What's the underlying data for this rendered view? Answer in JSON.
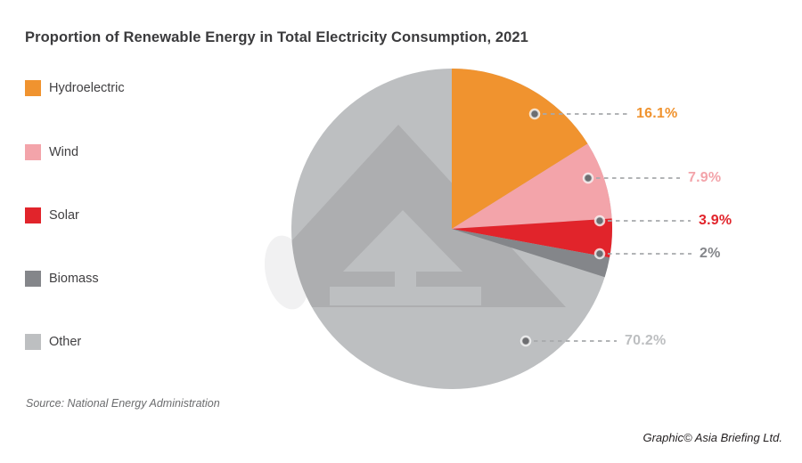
{
  "title": "Proportion of Renewable Energy in Total Electricity Consumption, 2021",
  "source": "Source: National Energy Administration",
  "credit": "Graphic© Asia Briefing Ltd.",
  "watermark": "asia-briefing-logo",
  "colors": {
    "background": "#FFFFFF",
    "title_text": "#3B3B3D",
    "legend_text": "#414042",
    "leader_line": "#A7A9AC",
    "callout_dot": "#6D6E71",
    "source_text": "#6B6C6E",
    "credit_text": "#231F20"
  },
  "chart_data": {
    "type": "pie",
    "title": "Proportion of Renewable Energy in Total Electricity Consumption, 2021",
    "legend_position": "left",
    "start_angle_deg": 0,
    "direction": "clockwise",
    "series": [
      {
        "label": "Hydroelectric",
        "value": 16.1,
        "display": "16.1%",
        "color": "#F0932F"
      },
      {
        "label": "Wind",
        "value": 7.9,
        "display": "7.9%",
        "color": "#F3A4AA"
      },
      {
        "label": "Solar",
        "value": 3.9,
        "display": "3.9%",
        "color": "#E1242B"
      },
      {
        "label": "Biomass",
        "value": 2,
        "display": "2%",
        "color": "#84868A"
      },
      {
        "label": "Other",
        "value": 70.2,
        "display": "70.2%",
        "color": "#BDBFC1"
      }
    ]
  }
}
